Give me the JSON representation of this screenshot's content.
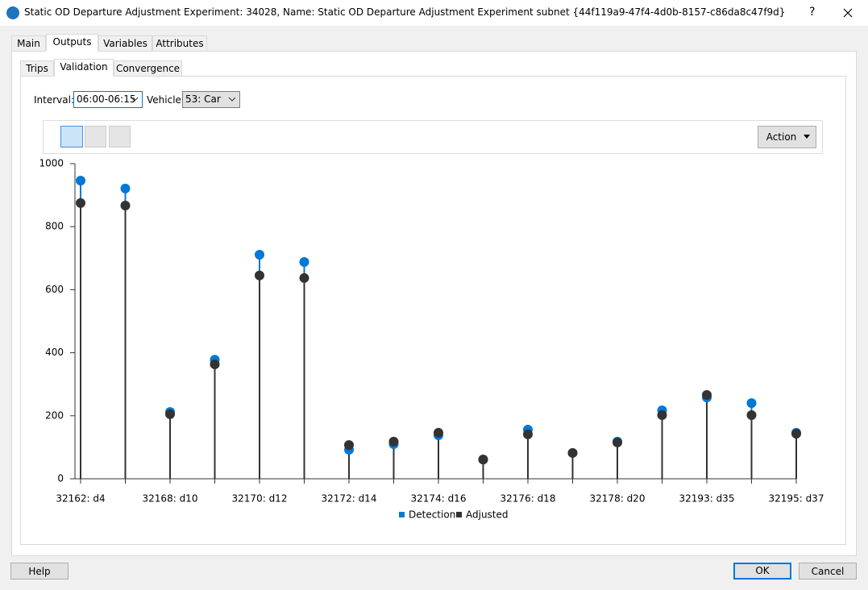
{
  "window": {
    "title": "Static OD Departure Adjustment Experiment: 34028, Name: Static OD Departure Adjustment Experiment subnet {44f119a9-47f4-4d0b-8157-c86da8c47f9d}",
    "help": "?"
  },
  "tabs": [
    "Main",
    "Outputs",
    "Variables",
    "Attributes"
  ],
  "active_tab": "Outputs",
  "subtabs": [
    "Trips",
    "Validation",
    "Convergence"
  ],
  "active_subtab": "Validation",
  "filters": {
    "interval_label": "Interval:",
    "interval": "06:00-06:15",
    "vehicle_label": "Vehicle:",
    "vehicle": "53: Car"
  },
  "toolbar": {
    "action": "Action"
  },
  "buttons": {
    "help": "Help",
    "ok": "OK",
    "cancel": "Cancel"
  },
  "chart_data": {
    "type": "stem",
    "categories": [
      "32162: d4",
      null,
      "32168: d10",
      null,
      "32170: d12",
      null,
      "32172: d14",
      null,
      "32174: d16",
      null,
      "32176: d18",
      null,
      "32178: d20",
      null,
      "32193: d35",
      null,
      "32195: d37"
    ],
    "series": [
      {
        "name": "Detection",
        "color": "#0078d7",
        "values": [
          946,
          921,
          212,
          378,
          711,
          688,
          92,
          110,
          138,
          61,
          156,
          82,
          118,
          217,
          258,
          240,
          146
        ]
      },
      {
        "name": "Adjusted",
        "color": "#333333",
        "values": [
          875,
          867,
          205,
          363,
          645,
          637,
          107,
          118,
          146,
          61,
          141,
          82,
          115,
          202,
          266,
          202,
          143
        ]
      }
    ],
    "ylim": [
      0,
      1000
    ],
    "yticks": [
      0,
      200,
      400,
      600,
      800,
      1000
    ],
    "legend": "bottom"
  }
}
